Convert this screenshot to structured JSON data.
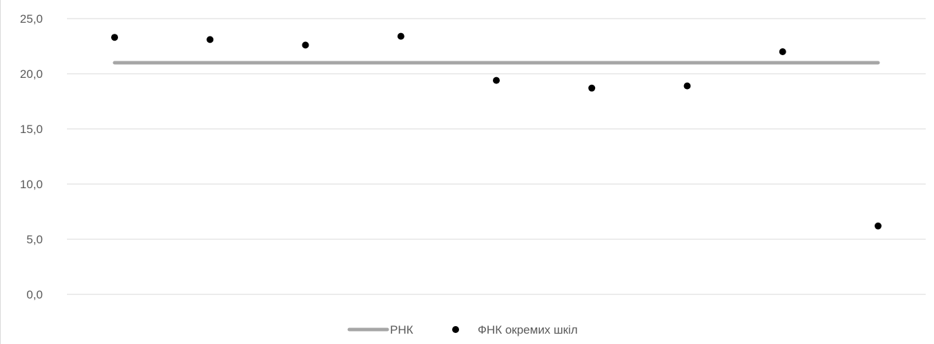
{
  "chart_data": {
    "type": "scatter",
    "title": "",
    "xlabel": "",
    "ylabel": "",
    "ylim": [
      0,
      25
    ],
    "y_ticks": [
      "0,0",
      "5,0",
      "10,0",
      "15,0",
      "20,0",
      "25,0"
    ],
    "y_tick_values": [
      0,
      5,
      10,
      15,
      20,
      25
    ],
    "grid": true,
    "legend_position": "bottom",
    "x": [
      1,
      2,
      3,
      4,
      5,
      6,
      7,
      8,
      9
    ],
    "series": [
      {
        "name": "РНК",
        "type": "line",
        "color": "#a6a6a6",
        "values": [
          21.0,
          21.0,
          21.0,
          21.0,
          21.0,
          21.0,
          21.0,
          21.0,
          21.0
        ]
      },
      {
        "name": "ФНК окремих шкіл",
        "type": "scatter",
        "color": "#000000",
        "values": [
          23.3,
          23.1,
          22.6,
          23.4,
          19.4,
          18.7,
          18.9,
          22.0,
          6.2
        ]
      }
    ]
  },
  "colors": {
    "grid": "#d9d9d9",
    "axis_text": "#595959",
    "line": "#a6a6a6",
    "marker": "#000000"
  }
}
